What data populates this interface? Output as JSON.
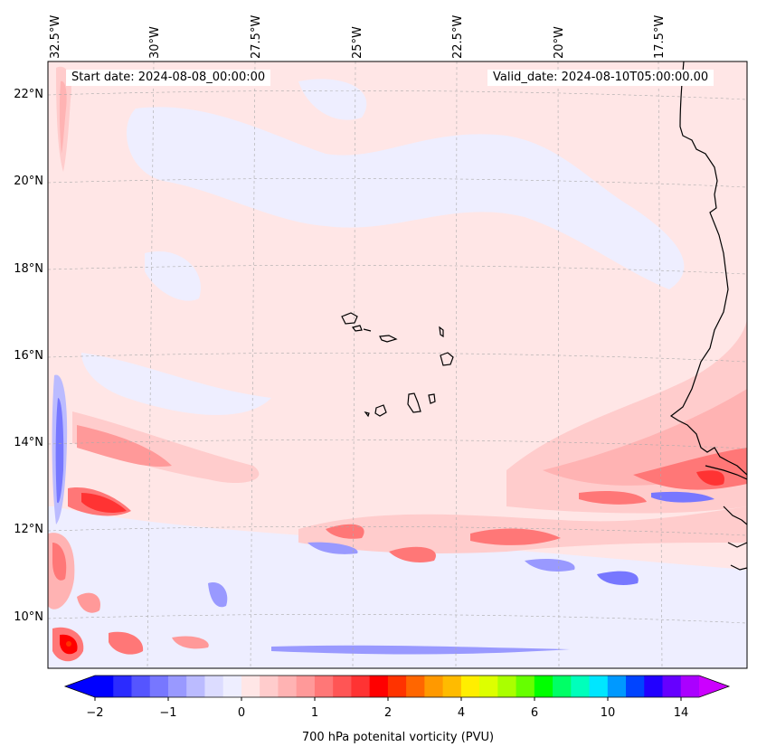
{
  "map": {
    "start_date": "Start date: 2024-08-08_00:00:00",
    "valid_date": "Valid_date: 2024-08-10T05:00:00.00",
    "longitude_labels": [
      "32.5°W",
      "30°W",
      "27.5°W",
      "25°W",
      "22.5°W",
      "20°W",
      "17.5°W"
    ],
    "latitude_labels": [
      "22°N",
      "20°N",
      "18°N",
      "16°N",
      "14°N",
      "12°N",
      "10°N"
    ],
    "background_color": "#ffe6e6",
    "gridlines": true
  },
  "colorbar": {
    "label": "700 hPa potenital vorticity (PVU)",
    "tick_labels": [
      "−2",
      "−1",
      "0",
      "1",
      "2",
      "4",
      "6",
      "10",
      "14"
    ],
    "colors": [
      "#0000ff",
      "#2b2bff",
      "#5555ff",
      "#7777ff",
      "#9999ff",
      "#bbbbff",
      "#dcdcff",
      "#eeeeff",
      "#ffe6e6",
      "#ffcccc",
      "#ffb3b3",
      "#ff9999",
      "#ff7777",
      "#ff5555",
      "#ff3333",
      "#ff0000",
      "#ff3300",
      "#ff6600",
      "#ff9900",
      "#ffbb00",
      "#ffee00",
      "#ddff00",
      "#aaff00",
      "#66ff00",
      "#00ff00",
      "#00ff66",
      "#00ffbb",
      "#00e6ff",
      "#0099ff",
      "#0044ff",
      "#2200ff",
      "#6600ff",
      "#aa00ff"
    ],
    "extend_low_color": "#0000ff",
    "extend_high_color": "#cc00ff"
  }
}
